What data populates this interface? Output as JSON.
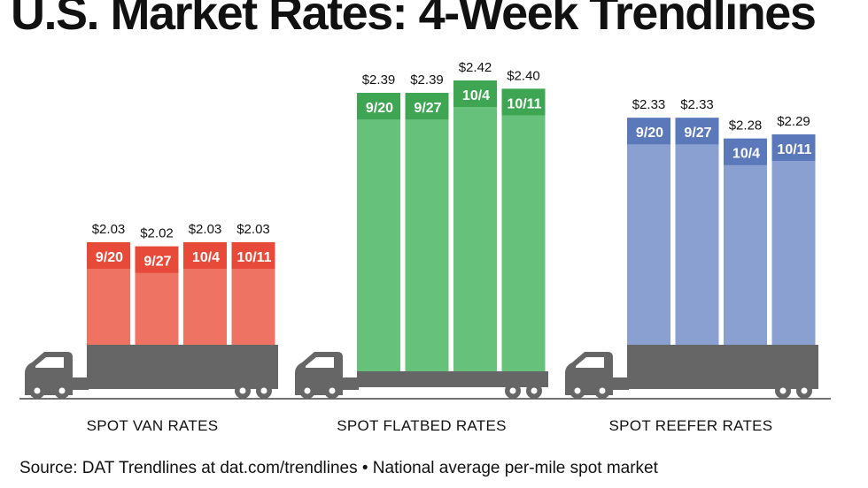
{
  "title": "U.S. Market Rates: 4-Week Trendlines",
  "source": "Source: DAT Trendlines at dat.com/trendlines • National average per-mile spot market",
  "colors": {
    "truck": "#666666",
    "axis": "#444444"
  },
  "chart_data": [
    {
      "type": "bar",
      "name": "SPOT VAN RATES",
      "categories": [
        "9/20",
        "9/27",
        "10/4",
        "10/11"
      ],
      "values": [
        2.03,
        2.02,
        2.03,
        2.03
      ],
      "value_labels": [
        "$2.03",
        "$2.02",
        "$2.03",
        "$2.03"
      ],
      "color": "#ee7363",
      "header_color": "#e84a3a"
    },
    {
      "type": "bar",
      "name": "SPOT FLATBED RATES",
      "categories": [
        "9/20",
        "9/27",
        "10/4",
        "10/11"
      ],
      "values": [
        2.39,
        2.39,
        2.42,
        2.4
      ],
      "value_labels": [
        "$2.39",
        "$2.39",
        "$2.42",
        "$2.40"
      ],
      "color": "#66c17a",
      "header_color": "#3ea552"
    },
    {
      "type": "bar",
      "name": "SPOT REEFER RATES",
      "categories": [
        "9/20",
        "9/27",
        "10/4",
        "10/11"
      ],
      "values": [
        2.33,
        2.33,
        2.28,
        2.29
      ],
      "value_labels": [
        "$2.33",
        "$2.33",
        "$2.28",
        "$2.29"
      ],
      "color": "#8aa0d0",
      "header_color": "#5a78ba"
    }
  ]
}
